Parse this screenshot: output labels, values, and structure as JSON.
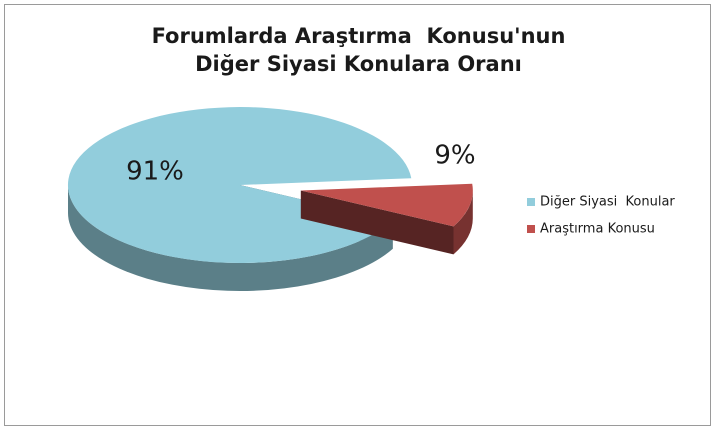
{
  "chart_data": {
    "type": "pie",
    "title": "Forumlarda Araştırma  Konusu'nun\nDiğer Siyasi Konulara Oranı",
    "categories": [
      "Diğer Siyasi  Konular",
      "Araştırma Konusu"
    ],
    "values": [
      91,
      9
    ],
    "value_labels": [
      "91%",
      "9%"
    ],
    "colors": [
      "#92cddc",
      "#c0504d"
    ],
    "legend": "right"
  }
}
